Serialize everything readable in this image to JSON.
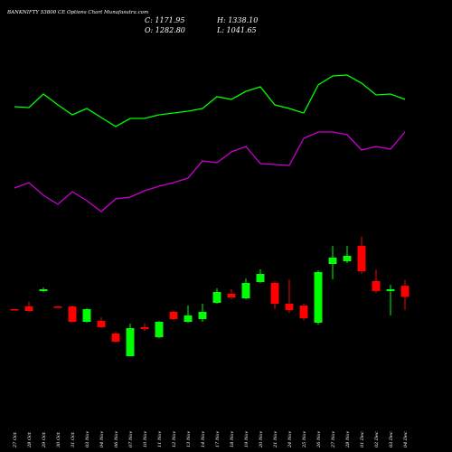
{
  "chart_data": {
    "type": "candlestick",
    "title": "BANKNIFTY 53800 CE Options Chart Munafasutra.com",
    "close_label": "C: 1171.95",
    "open_label": "O: 1282.80",
    "high_label": "H: 1338.10",
    "low_label": "L: 1041.65",
    "up_color": "#00ff00",
    "down_color": "#ff0000",
    "ylim": [
      -372,
      4128
    ],
    "categories": [
      "27 Oct",
      "28 Oct",
      "29 Oct",
      "30 Oct",
      "31 Oct",
      "03 Nov",
      "04 Nov",
      "06 Nov",
      "07 Nov",
      "10 Nov",
      "11 Nov",
      "12 Nov",
      "13 Nov",
      "14 Nov",
      "17 Nov",
      "18 Nov",
      "19 Nov",
      "20 Nov",
      "21 Nov",
      "24 Nov",
      "25 Nov",
      "26 Nov",
      "27 Nov",
      "28 Nov",
      "01 Dec",
      "02 Dec",
      "03 Dec",
      "04 Dec"
    ],
    "open": [
      1050,
      1077,
      1230,
      1077,
      1077,
      924,
      933,
      807,
      582,
      870,
      771,
      1023,
      924,
      951,
      1113,
      1203,
      1158,
      1320,
      1311,
      1104,
      1086,
      915,
      1500,
      1527,
      1680,
      1329,
      1230,
      1282.8
    ],
    "high": [
      1050,
      1122,
      1266,
      1086,
      1086,
      1059,
      969,
      825,
      906,
      906,
      933,
      1032,
      1086,
      1104,
      1257,
      1248,
      1356,
      1446,
      1329,
      1347,
      1104,
      1437,
      1680,
      1680,
      1770,
      1446,
      1293,
      1338.1
    ],
    "low": [
      1041,
      1023,
      1221,
      1068,
      915,
      915,
      861,
      717,
      582,
      834,
      762,
      942,
      915,
      924,
      1104,
      1149,
      1149,
      1311,
      1050,
      1014,
      942,
      897,
      1347,
      1509,
      1401,
      1212,
      987,
      1041.65
    ],
    "close": [
      1041,
      1032,
      1248,
      1068,
      924,
      1050,
      870,
      726,
      861,
      852,
      924,
      951,
      987,
      1023,
      1221,
      1167,
      1311,
      1401,
      1104,
      1041,
      960,
      1419,
      1563,
      1581,
      1428,
      1230,
      1248,
      1171.95
    ],
    "lines": [
      {
        "color": "#00ff00",
        "values": [
          3066,
          3057,
          3192,
          3084,
          2985,
          3048,
          2958,
          2868,
          2949,
          2949,
          2985,
          3003,
          3021,
          3048,
          3165,
          3138,
          3219,
          3264,
          3084,
          3048,
          3003,
          3282,
          3372,
          3381,
          3300,
          3183,
          3192,
          3138
        ]
      },
      {
        "color": "#cc00cc",
        "values": [
          2256,
          2310,
          2184,
          2094,
          2220,
          2130,
          2022,
          2148,
          2166,
          2229,
          2274,
          2310,
          2355,
          2526,
          2508,
          2616,
          2670,
          2499,
          2490,
          2481,
          2751,
          2814,
          2814,
          2787,
          2634,
          2670,
          2643,
          2814
        ]
      }
    ]
  }
}
